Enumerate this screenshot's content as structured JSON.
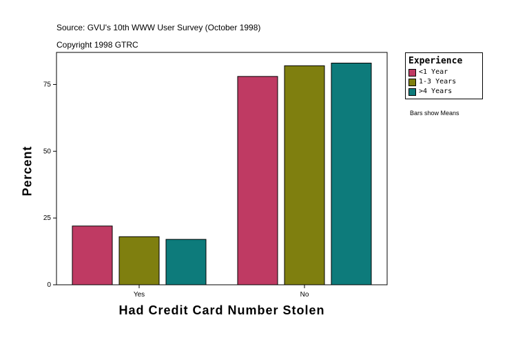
{
  "source": "Source: GVU's 10th WWW User Survey (October 1998)",
  "copyright": "Copyright 1998 GTRC",
  "note": "Bars show Means",
  "chart_data": {
    "type": "bar",
    "categories": [
      "Yes",
      "No"
    ],
    "series": [
      {
        "name": "<1 Year",
        "color": "#bf3a63",
        "values": [
          22,
          78
        ]
      },
      {
        "name": "1-3 Years",
        "color": "#7f7f0f",
        "values": [
          18,
          82
        ]
      },
      {
        "name": ">4 Years",
        "color": "#0d7b7b",
        "values": [
          17,
          83
        ]
      }
    ],
    "legend_title": "Experience",
    "xlabel": "Had Credit Card Number Stolen",
    "ylabel": "Percent",
    "ylim": [
      0,
      87
    ],
    "yticks": [
      0,
      25,
      50,
      75
    ],
    "legend_position": "top-right",
    "grid": false
  }
}
